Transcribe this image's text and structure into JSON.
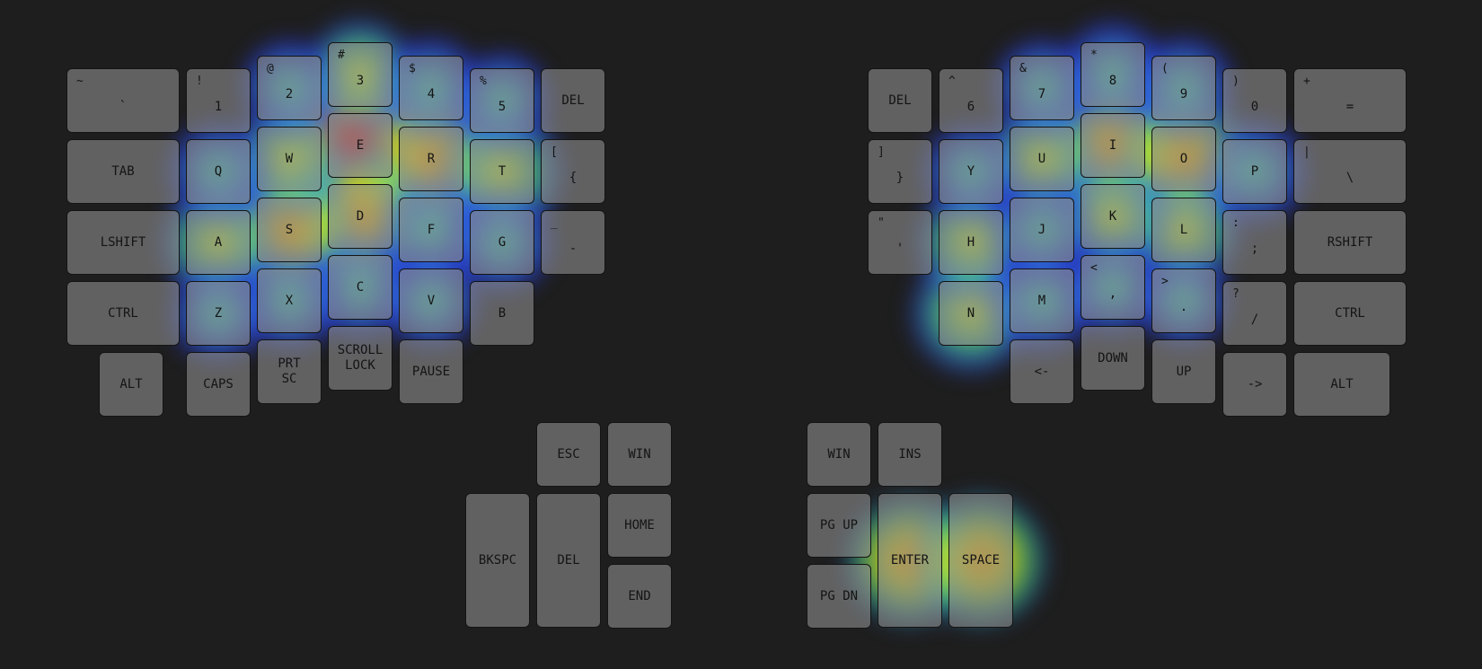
{
  "colors": {
    "background": "#1e1e1e",
    "key_fill": "#8a8a8a",
    "key_border": "#141414",
    "label": "#141414"
  },
  "keyboard": {
    "left": {
      "row_numbers": [
        {
          "name": "key-grave",
          "main": "`",
          "shift": "~"
        },
        {
          "name": "key-1",
          "main": "1",
          "shift": "!"
        },
        {
          "name": "key-2",
          "main": "2",
          "shift": "@"
        },
        {
          "name": "key-3",
          "main": "3",
          "shift": "#"
        },
        {
          "name": "key-4",
          "main": "4",
          "shift": "$"
        },
        {
          "name": "key-5",
          "main": "5",
          "shift": "%"
        },
        {
          "name": "key-del-left",
          "main": "DEL",
          "shift": ""
        }
      ],
      "row_top": [
        {
          "name": "key-tab",
          "main": "TAB",
          "shift": ""
        },
        {
          "name": "key-q",
          "main": "Q",
          "shift": ""
        },
        {
          "name": "key-w",
          "main": "W",
          "shift": ""
        },
        {
          "name": "key-e",
          "main": "E",
          "shift": ""
        },
        {
          "name": "key-r",
          "main": "R",
          "shift": ""
        },
        {
          "name": "key-t",
          "main": "T",
          "shift": ""
        },
        {
          "name": "key-left-brace",
          "main": "{",
          "shift": "["
        }
      ],
      "row_home": [
        {
          "name": "key-lshift",
          "main": "LSHIFT",
          "shift": ""
        },
        {
          "name": "key-a",
          "main": "A",
          "shift": ""
        },
        {
          "name": "key-s",
          "main": "S",
          "shift": ""
        },
        {
          "name": "key-d",
          "main": "D",
          "shift": ""
        },
        {
          "name": "key-f",
          "main": "F",
          "shift": ""
        },
        {
          "name": "key-g",
          "main": "G",
          "shift": ""
        },
        {
          "name": "key-minus",
          "main": "-",
          "shift": "_"
        }
      ],
      "row_bottom": [
        {
          "name": "key-lctrl",
          "main": "CTRL",
          "shift": ""
        },
        {
          "name": "key-z",
          "main": "Z",
          "shift": ""
        },
        {
          "name": "key-x",
          "main": "X",
          "shift": ""
        },
        {
          "name": "key-c",
          "main": "C",
          "shift": ""
        },
        {
          "name": "key-v",
          "main": "V",
          "shift": ""
        },
        {
          "name": "key-b",
          "main": "B",
          "shift": ""
        }
      ],
      "row_extra": [
        {
          "name": "key-lalt",
          "main": "ALT",
          "shift": ""
        },
        {
          "name": "key-caps",
          "main": "CAPS",
          "shift": ""
        },
        {
          "name": "key-prtsc",
          "main": "PRT\nSC",
          "shift": ""
        },
        {
          "name": "key-scroll-lock",
          "main": "SCROLL\nLOCK",
          "shift": ""
        },
        {
          "name": "key-pause",
          "main": "PAUSE",
          "shift": ""
        }
      ],
      "thumb": [
        {
          "name": "key-esc",
          "main": "ESC",
          "shift": ""
        },
        {
          "name": "key-win-left",
          "main": "WIN",
          "shift": ""
        },
        {
          "name": "key-bkspc",
          "main": "BKSPC",
          "shift": ""
        },
        {
          "name": "key-del-thumb",
          "main": "DEL",
          "shift": ""
        },
        {
          "name": "key-home",
          "main": "HOME",
          "shift": ""
        },
        {
          "name": "key-end",
          "main": "END",
          "shift": ""
        }
      ]
    },
    "right": {
      "row_numbers": [
        {
          "name": "key-del-right",
          "main": "DEL",
          "shift": ""
        },
        {
          "name": "key-6",
          "main": "6",
          "shift": "^"
        },
        {
          "name": "key-7",
          "main": "7",
          "shift": "&"
        },
        {
          "name": "key-8",
          "main": "8",
          "shift": "*"
        },
        {
          "name": "key-9",
          "main": "9",
          "shift": "("
        },
        {
          "name": "key-0",
          "main": "0",
          "shift": ")"
        },
        {
          "name": "key-equals",
          "main": "=",
          "shift": "+"
        }
      ],
      "row_top": [
        {
          "name": "key-right-brace",
          "main": "}",
          "shift": "]"
        },
        {
          "name": "key-y",
          "main": "Y",
          "shift": ""
        },
        {
          "name": "key-u",
          "main": "U",
          "shift": ""
        },
        {
          "name": "key-i",
          "main": "I",
          "shift": ""
        },
        {
          "name": "key-o",
          "main": "O",
          "shift": ""
        },
        {
          "name": "key-p",
          "main": "P",
          "shift": ""
        },
        {
          "name": "key-backslash",
          "main": "\\",
          "shift": "|"
        }
      ],
      "row_home": [
        {
          "name": "key-quote",
          "main": "'",
          "shift": "\""
        },
        {
          "name": "key-h",
          "main": "H",
          "shift": ""
        },
        {
          "name": "key-j",
          "main": "J",
          "shift": ""
        },
        {
          "name": "key-k",
          "main": "K",
          "shift": ""
        },
        {
          "name": "key-l",
          "main": "L",
          "shift": ""
        },
        {
          "name": "key-semicolon",
          "main": ";",
          "shift": ":"
        },
        {
          "name": "key-rshift",
          "main": "RSHIFT",
          "shift": ""
        }
      ],
      "row_bottom": [
        {
          "name": "key-n",
          "main": "N",
          "shift": ""
        },
        {
          "name": "key-m",
          "main": "M",
          "shift": ""
        },
        {
          "name": "key-comma",
          "main": ",",
          "shift": "<"
        },
        {
          "name": "key-period",
          "main": ".",
          "shift": ">"
        },
        {
          "name": "key-slash",
          "main": "/",
          "shift": "?"
        },
        {
          "name": "key-rctrl",
          "main": "CTRL",
          "shift": ""
        }
      ],
      "row_extra": [
        {
          "name": "key-arrow-left",
          "main": "<-",
          "shift": ""
        },
        {
          "name": "key-down",
          "main": "DOWN",
          "shift": ""
        },
        {
          "name": "key-up",
          "main": "UP",
          "shift": ""
        },
        {
          "name": "key-arrow-right",
          "main": "->",
          "shift": ""
        },
        {
          "name": "key-ralt",
          "main": "ALT",
          "shift": ""
        }
      ],
      "thumb": [
        {
          "name": "key-win-right",
          "main": "WIN",
          "shift": ""
        },
        {
          "name": "key-ins",
          "main": "INS",
          "shift": ""
        },
        {
          "name": "key-pgup",
          "main": "PG UP",
          "shift": ""
        },
        {
          "name": "key-enter",
          "main": "ENTER",
          "shift": ""
        },
        {
          "name": "key-space",
          "main": "SPACE",
          "shift": ""
        },
        {
          "name": "key-pgdn",
          "main": "PG DN",
          "shift": ""
        }
      ]
    }
  },
  "heatmap": [
    {
      "key": "key-e",
      "level": 1.0
    },
    {
      "key": "key-r",
      "level": 0.75
    },
    {
      "key": "key-d",
      "level": 0.65
    },
    {
      "key": "key-s",
      "level": 0.6
    },
    {
      "key": "key-t",
      "level": 0.55
    },
    {
      "key": "key-w",
      "level": 0.45
    },
    {
      "key": "key-a",
      "level": 0.45
    },
    {
      "key": "key-3",
      "level": 0.4
    },
    {
      "key": "key-c",
      "level": 0.35
    },
    {
      "key": "key-f",
      "level": 0.35
    },
    {
      "key": "key-4",
      "level": 0.3
    },
    {
      "key": "key-q",
      "level": 0.3
    },
    {
      "key": "key-x",
      "level": 0.3
    },
    {
      "key": "key-g",
      "level": 0.3
    },
    {
      "key": "key-2",
      "level": 0.25
    },
    {
      "key": "key-5",
      "level": 0.25
    },
    {
      "key": "key-z",
      "level": 0.25
    },
    {
      "key": "key-v",
      "level": 0.25
    },
    {
      "key": "key-i",
      "level": 0.7
    },
    {
      "key": "key-o",
      "level": 0.65
    },
    {
      "key": "key-n",
      "level": 0.5
    },
    {
      "key": "key-u",
      "level": 0.45
    },
    {
      "key": "key-l",
      "level": 0.45
    },
    {
      "key": "key-k",
      "level": 0.4
    },
    {
      "key": "key-h",
      "level": 0.4
    },
    {
      "key": "key-p",
      "level": 0.35
    },
    {
      "key": "key-8",
      "level": 0.35
    },
    {
      "key": "key-m",
      "level": 0.35
    },
    {
      "key": "key-j",
      "level": 0.3
    },
    {
      "key": "key-9",
      "level": 0.3
    },
    {
      "key": "key-7",
      "level": 0.25
    },
    {
      "key": "key-y",
      "level": 0.25
    },
    {
      "key": "key-comma",
      "level": 0.25
    },
    {
      "key": "key-period",
      "level": 0.2
    },
    {
      "key": "key-enter",
      "level": 0.6
    },
    {
      "key": "key-space",
      "level": 0.62
    }
  ]
}
